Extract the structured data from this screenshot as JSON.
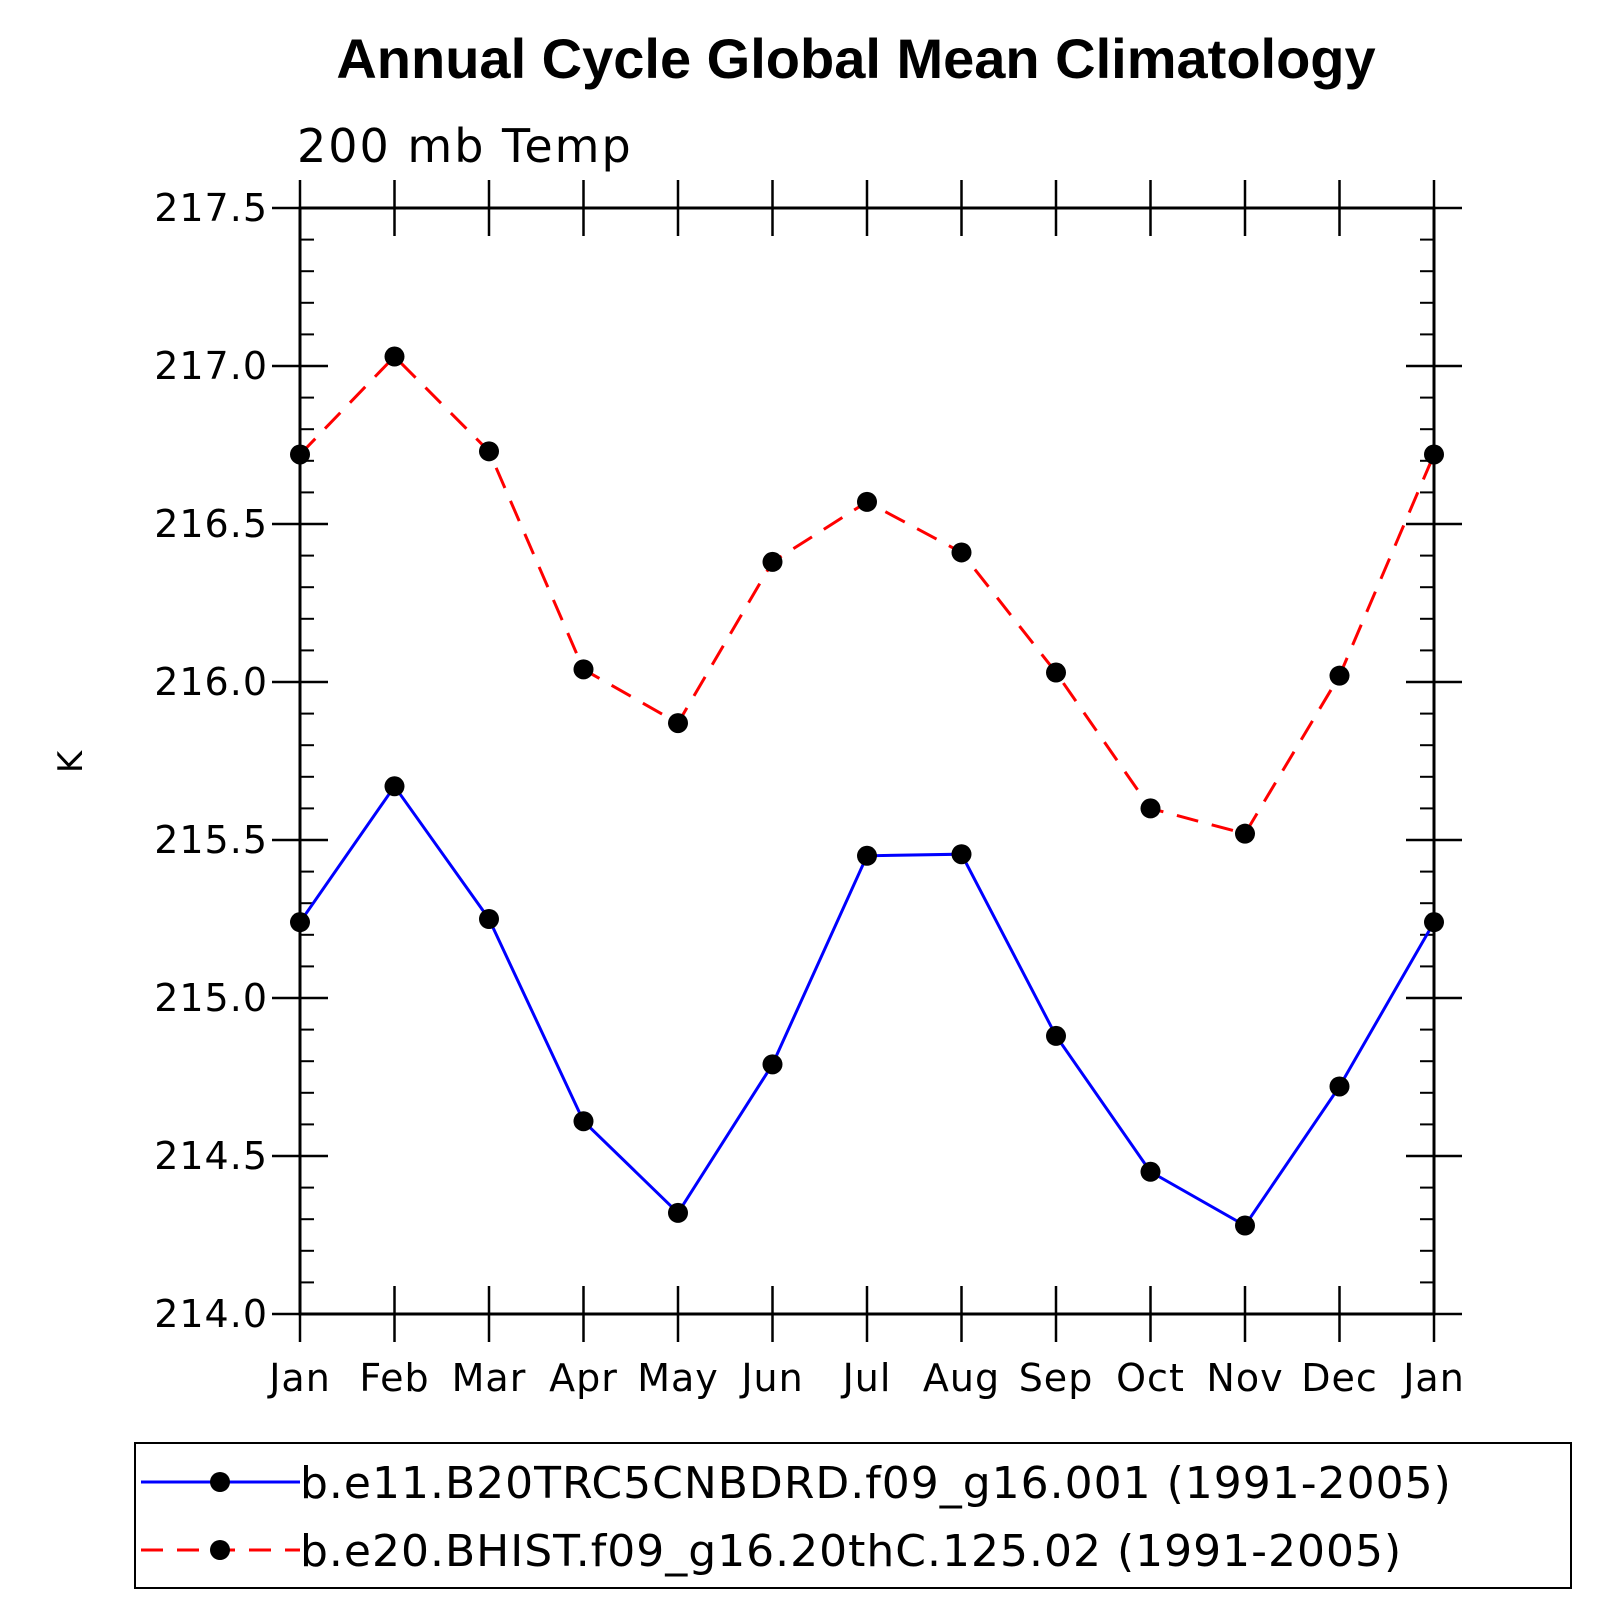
{
  "chart_data": {
    "type": "line",
    "title": "Annual Cycle Global Mean Climatology",
    "subtitle": "200 mb Temp",
    "xlabel": "",
    "ylabel": "K",
    "categories": [
      "Jan",
      "Feb",
      "Mar",
      "Apr",
      "May",
      "Jun",
      "Jul",
      "Aug",
      "Sep",
      "Oct",
      "Nov",
      "Dec",
      "Jan"
    ],
    "ylim": [
      214.0,
      217.5
    ],
    "yticks": [
      "214.0",
      "214.5",
      "215.0",
      "215.5",
      "216.0",
      "216.5",
      "217.0",
      "217.5"
    ],
    "legend_position": "bottom",
    "series": [
      {
        "name": "b.e11.B20TRC5CNBDRD.f09_g16.001 (1991-2005)",
        "color": "#0000ff",
        "line_style": "solid",
        "marker": "filled-circle",
        "values": [
          215.24,
          215.67,
          215.25,
          214.61,
          214.32,
          214.79,
          215.45,
          215.455,
          214.88,
          214.45,
          214.28,
          214.72,
          215.24
        ]
      },
      {
        "name": "b.e20.BHIST.f09_g16.20thC.125.02 (1991-2005)",
        "color": "#ff0000",
        "line_style": "dashed",
        "marker": "filled-circle",
        "values": [
          216.72,
          217.03,
          216.73,
          216.04,
          215.87,
          216.38,
          216.57,
          216.41,
          216.03,
          215.6,
          215.52,
          216.02,
          216.72
        ]
      }
    ]
  }
}
